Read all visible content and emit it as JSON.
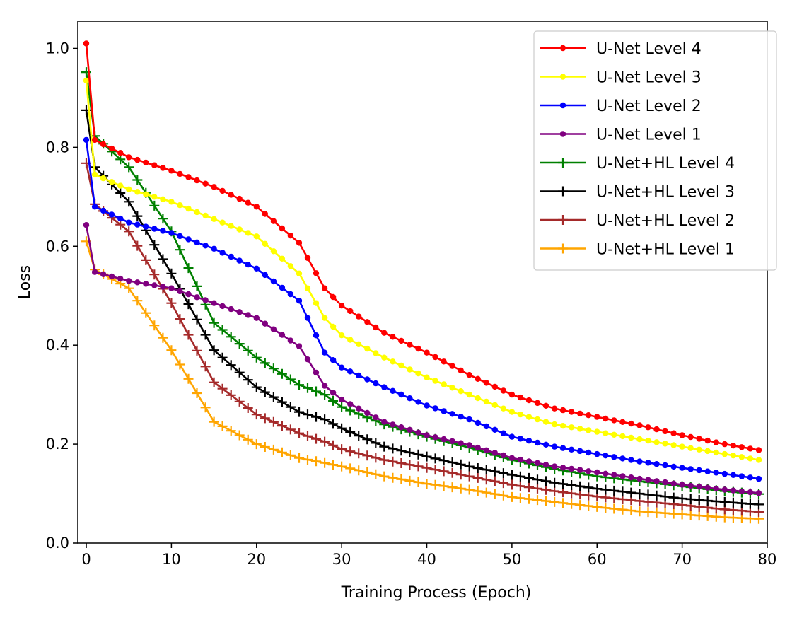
{
  "chart_data": {
    "type": "line",
    "title": "",
    "xlabel": "Training Process (Epoch)",
    "ylabel": "Loss",
    "xlim": [
      -1,
      80
    ],
    "ylim": [
      0,
      1.0
    ],
    "xticks": [
      "0",
      "10",
      "20",
      "30",
      "40",
      "50",
      "60",
      "70",
      "80"
    ],
    "yticks": [
      "0.0",
      "0.2",
      "0.4",
      "0.6",
      "0.8",
      "1.0"
    ],
    "grid": false,
    "legend_position": "top-right",
    "anchors_x": [
      0,
      1,
      5,
      10,
      15,
      20,
      25,
      28,
      30,
      35,
      40,
      45,
      50,
      55,
      60,
      65,
      70,
      75,
      79
    ],
    "series": [
      {
        "name": "U-Net Level 4",
        "color": "#ff0000",
        "marker": "dot",
        "anchors": [
          1.01,
          0.815,
          0.78,
          0.753,
          0.72,
          0.68,
          0.607,
          0.515,
          0.48,
          0.425,
          0.385,
          0.34,
          0.3,
          0.272,
          0.255,
          0.238,
          0.218,
          0.2,
          0.188
        ]
      },
      {
        "name": "U-Net Level 3",
        "color": "#ffff00",
        "marker": "dot",
        "anchors": [
          0.935,
          0.745,
          0.715,
          0.69,
          0.655,
          0.62,
          0.545,
          0.455,
          0.42,
          0.375,
          0.335,
          0.3,
          0.265,
          0.24,
          0.225,
          0.21,
          0.195,
          0.18,
          0.168
        ]
      },
      {
        "name": "U-Net Level 2",
        "color": "#0000ff",
        "marker": "dot",
        "anchors": [
          0.815,
          0.68,
          0.648,
          0.627,
          0.595,
          0.555,
          0.49,
          0.385,
          0.355,
          0.315,
          0.278,
          0.25,
          0.215,
          0.195,
          0.18,
          0.165,
          0.152,
          0.14,
          0.13
        ]
      },
      {
        "name": "U-Net Level 1",
        "color": "#800080",
        "marker": "dot",
        "anchors": [
          0.643,
          0.548,
          0.53,
          0.515,
          0.485,
          0.455,
          0.398,
          0.318,
          0.29,
          0.245,
          0.218,
          0.198,
          0.172,
          0.155,
          0.143,
          0.13,
          0.118,
          0.108,
          0.101
        ]
      },
      {
        "name": "U-Net+HL Level 4",
        "color": "#008000",
        "marker": "plus",
        "anchors": [
          0.952,
          0.823,
          0.76,
          0.63,
          0.445,
          0.375,
          0.32,
          0.3,
          0.275,
          0.24,
          0.215,
          0.193,
          0.168,
          0.15,
          0.135,
          0.125,
          0.115,
          0.105,
          0.099
        ]
      },
      {
        "name": "U-Net+HL Level 3",
        "color": "#000000",
        "marker": "plus",
        "anchors": [
          0.875,
          0.76,
          0.69,
          0.545,
          0.39,
          0.315,
          0.265,
          0.25,
          0.232,
          0.195,
          0.175,
          0.155,
          0.138,
          0.122,
          0.11,
          0.1,
          0.09,
          0.083,
          0.078
        ]
      },
      {
        "name": "U-Net+HL Level 2",
        "color": "#a52a2a",
        "marker": "plus",
        "anchors": [
          0.768,
          0.685,
          0.63,
          0.485,
          0.325,
          0.26,
          0.222,
          0.205,
          0.19,
          0.168,
          0.152,
          0.135,
          0.118,
          0.105,
          0.094,
          0.085,
          0.077,
          0.068,
          0.063
        ]
      },
      {
        "name": "U-Net+HL Level 1",
        "color": "#ffa500",
        "marker": "plus",
        "anchors": [
          0.61,
          0.553,
          0.515,
          0.39,
          0.245,
          0.2,
          0.172,
          0.162,
          0.155,
          0.135,
          0.12,
          0.108,
          0.093,
          0.083,
          0.073,
          0.064,
          0.058,
          0.052,
          0.049
        ]
      }
    ]
  }
}
